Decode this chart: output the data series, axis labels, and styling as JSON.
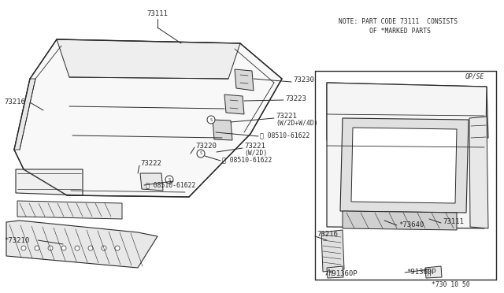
{
  "bg_color": "#ffffff",
  "line_color": "#2a2a2a",
  "text_color": "#2a2a2a",
  "note_text_line1": "NOTE: PART CODE 73111  CONSISTS",
  "note_text_line2": "        OF *MARKED PARTS",
  "diagram_number": "*730 10 50",
  "font_size": 6.5,
  "font_size_small": 5.8,
  "font_size_note": 6.5
}
